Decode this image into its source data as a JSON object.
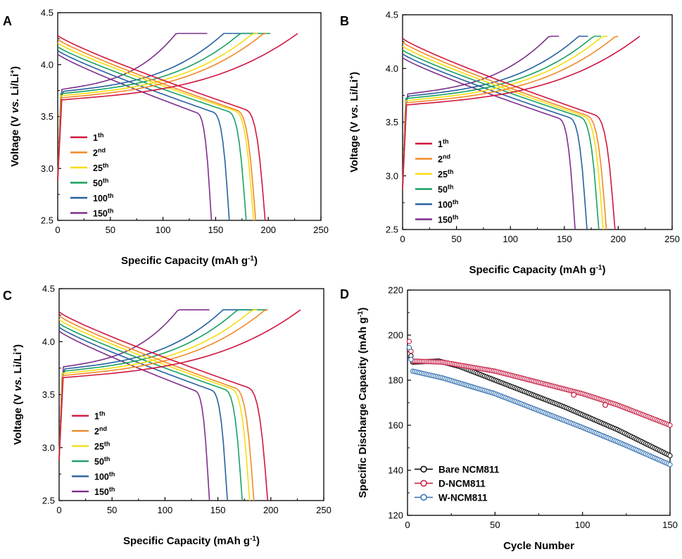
{
  "colors": {
    "c1": "#d0163f",
    "c2": "#f08a28",
    "c25": "#f5dd10",
    "c50": "#19a064",
    "c100": "#27609f",
    "c150": "#7d2f8a",
    "bare": "#111111",
    "dcoat": "#c8254a",
    "wcoat": "#3b76b5"
  },
  "chart_data": [
    {
      "type": "line",
      "panel": "A",
      "xlabel": "Specific Capacity (mAh g-1)",
      "ylabel": "Voltage (V vs. Li/Li+)",
      "xlim": [
        0,
        250
      ],
      "ylim": [
        2.5,
        4.5
      ],
      "xticks": [
        "0",
        "50",
        "100",
        "150",
        "200",
        "250"
      ],
      "yticks": [
        "2.5",
        "3.0",
        "3.5",
        "4.0",
        "4.5"
      ],
      "legend": [
        {
          "base": "1",
          "sup": "th",
          "color_key": "c1"
        },
        {
          "base": "2",
          "sup": "nd",
          "color_key": "c2"
        },
        {
          "base": "25",
          "sup": "th",
          "color_key": "c25"
        },
        {
          "base": "50",
          "sup": "th",
          "color_key": "c50"
        },
        {
          "base": "100",
          "sup": "th",
          "color_key": "c100"
        },
        {
          "base": "150",
          "sup": "th",
          "color_key": "c150"
        }
      ],
      "series": [
        {
          "name": "1th",
          "charge_end": 228,
          "discharge_end": 197
        },
        {
          "name": "2nd",
          "charge_end": 198,
          "discharge_end": 188
        },
        {
          "name": "25th",
          "charge_end": 190,
          "discharge_end": 186
        },
        {
          "name": "50th",
          "charge_end": 180,
          "discharge_end": 179
        },
        {
          "name": "100th",
          "charge_end": 166,
          "discharge_end": 163
        },
        {
          "name": "150th",
          "charge_end": 120,
          "discharge_end": 146
        }
      ]
    },
    {
      "type": "line",
      "panel": "B",
      "xlabel": "Specific Capacity (mAh g-1)",
      "ylabel": "Voltage (V vs. Li/Li+)",
      "xlim": [
        0,
        250
      ],
      "ylim": [
        2.5,
        4.5
      ],
      "xticks": [
        "0",
        "50",
        "100",
        "150",
        "200",
        "250"
      ],
      "yticks": [
        "2.5",
        "3.0",
        "3.5",
        "4.0",
        "4.5"
      ],
      "legend": [
        {
          "base": "1",
          "sup": "th",
          "color_key": "c1"
        },
        {
          "base": "2",
          "sup": "nd",
          "color_key": "c2"
        },
        {
          "base": "25",
          "sup": "th",
          "color_key": "c25"
        },
        {
          "base": "50",
          "sup": "th",
          "color_key": "c50"
        },
        {
          "base": "100",
          "sup": "th",
          "color_key": "c100"
        },
        {
          "base": "150",
          "sup": "th",
          "color_key": "c150"
        }
      ],
      "series": [
        {
          "name": "1th",
          "charge_end": 220,
          "discharge_end": 197
        },
        {
          "name": "2nd",
          "charge_end": 200,
          "discharge_end": 189
        },
        {
          "name": "25th",
          "charge_end": 190,
          "discharge_end": 186
        },
        {
          "name": "50th",
          "charge_end": 184,
          "discharge_end": 182
        },
        {
          "name": "100th",
          "charge_end": 172,
          "discharge_end": 171
        },
        {
          "name": "150th",
          "charge_end": 145,
          "discharge_end": 160
        }
      ]
    },
    {
      "type": "line",
      "panel": "C",
      "xlabel": "Specific Capacity (mAh g-1)",
      "ylabel": "Voltage (V vs. Li/Li+)",
      "xlim": [
        0,
        250
      ],
      "ylim": [
        2.5,
        4.5
      ],
      "xticks": [
        "0",
        "50",
        "100",
        "150",
        "200",
        "250"
      ],
      "yticks": [
        "2.5",
        "3.0",
        "3.5",
        "4.0",
        "4.5"
      ],
      "legend": [
        {
          "base": "1",
          "sup": "th",
          "color_key": "c1"
        },
        {
          "base": "2",
          "sup": "nd",
          "color_key": "c2"
        },
        {
          "base": "25",
          "sup": "th",
          "color_key": "c25"
        },
        {
          "base": "50",
          "sup": "th",
          "color_key": "c50"
        },
        {
          "base": "100",
          "sup": "th",
          "color_key": "c100"
        },
        {
          "base": "150",
          "sup": "th",
          "color_key": "c150"
        }
      ],
      "series": [
        {
          "name": "1th",
          "charge_end": 228,
          "discharge_end": 197
        },
        {
          "name": "2nd",
          "charge_end": 197,
          "discharge_end": 184
        },
        {
          "name": "25th",
          "charge_end": 187,
          "discharge_end": 180
        },
        {
          "name": "50th",
          "charge_end": 175,
          "discharge_end": 173
        },
        {
          "name": "100th",
          "charge_end": 163,
          "discharge_end": 159
        },
        {
          "name": "150th",
          "charge_end": 120,
          "discharge_end": 142
        }
      ]
    },
    {
      "type": "scatter",
      "panel": "D",
      "xlabel": "Cycle Number",
      "ylabel": "Specific Discharge Capacity (mAh g-1)",
      "xlim": [
        0,
        150
      ],
      "ylim": [
        120,
        220
      ],
      "xticks": [
        "0",
        "50",
        "100",
        "150"
      ],
      "yticks": [
        "120",
        "140",
        "160",
        "180",
        "200",
        "220"
      ],
      "series": [
        {
          "name": "Bare NCM811",
          "color_key": "bare",
          "first": 193.5,
          "points": [
            [
              3,
              188
            ],
            [
              18,
              188.5
            ],
            [
              30,
              186
            ],
            [
              60,
              177
            ],
            [
              90,
              168
            ],
            [
              120,
              158
            ],
            [
              150,
              146.5
            ]
          ]
        },
        {
          "name": "D-NCM811",
          "color_key": "dcoat",
          "first": 197.2,
          "points": [
            [
              3,
              188.5
            ],
            [
              20,
              188
            ],
            [
              50,
              184
            ],
            [
              80,
              178
            ],
            [
              100,
              174
            ],
            [
              120,
              169
            ],
            [
              150,
              160
            ]
          ]
        },
        {
          "name": "W-NCM811",
          "color_key": "wcoat",
          "first": 194.5,
          "points": [
            [
              3,
              184
            ],
            [
              20,
              181
            ],
            [
              50,
              174
            ],
            [
              80,
              165
            ],
            [
              100,
              159
            ],
            [
              125,
              151
            ],
            [
              150,
              142.5
            ]
          ]
        }
      ]
    }
  ]
}
